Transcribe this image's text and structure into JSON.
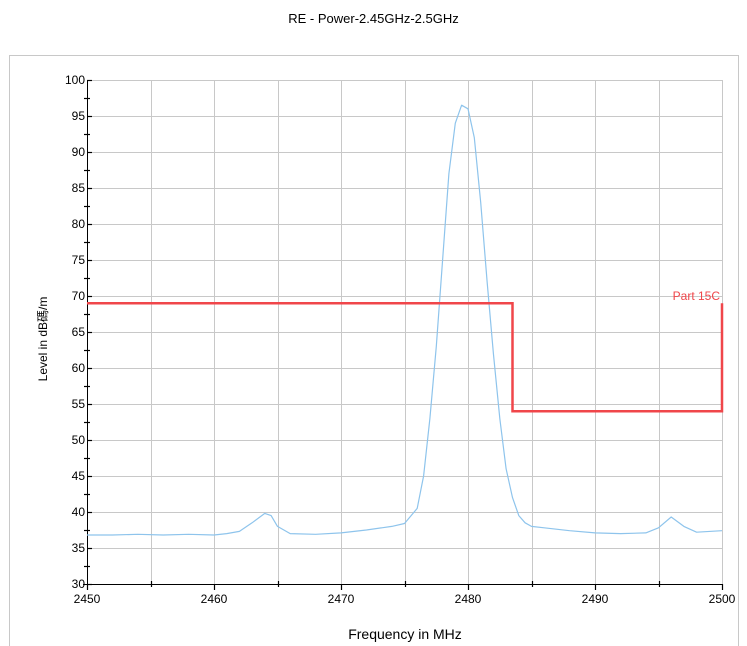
{
  "chart_data": {
    "type": "line",
    "title": "RE - Power-2.45GHz-2.5GHz",
    "xlabel": "Frequency in MHz",
    "ylabel": "Level in dB碼/m",
    "xlim": [
      2450,
      2500
    ],
    "ylim": [
      30,
      100
    ],
    "x_ticks": [
      2450,
      2460,
      2470,
      2480,
      2490,
      2500
    ],
    "y_ticks": [
      30,
      35,
      40,
      45,
      50,
      55,
      60,
      65,
      70,
      75,
      80,
      85,
      90,
      95,
      100
    ],
    "grid": true,
    "series": [
      {
        "name": "",
        "color": "#8ec4ec",
        "x": [
          2450,
          2452,
          2454,
          2456,
          2458,
          2460,
          2461,
          2462,
          2463,
          2464,
          2464.5,
          2465,
          2466,
          2468,
          2470,
          2472,
          2474,
          2475,
          2476,
          2476.5,
          2477,
          2477.5,
          2478,
          2478.5,
          2479,
          2479.5,
          2480,
          2480.5,
          2481,
          2481.5,
          2482,
          2482.5,
          2483,
          2483.5,
          2484,
          2484.5,
          2485,
          2486,
          2488,
          2490,
          2492,
          2494,
          2495,
          2496,
          2497,
          2498,
          2500
        ],
        "y": [
          36.8,
          36.8,
          36.9,
          36.8,
          36.9,
          36.8,
          37,
          37.3,
          38.5,
          39.8,
          39.5,
          38,
          37,
          36.9,
          37.1,
          37.5,
          38,
          38.4,
          40.5,
          45,
          53,
          63,
          75,
          87,
          94,
          96.5,
          96,
          92,
          83,
          72,
          62,
          53,
          46,
          42,
          39.5,
          38.5,
          38,
          37.8,
          37.4,
          37.1,
          37,
          37.1,
          37.8,
          39.3,
          38,
          37.2,
          37.4
        ]
      },
      {
        "name": "Part 15C",
        "color": "#f0464a",
        "x": [
          2450,
          2483.5,
          2483.5,
          2500,
          2500
        ],
        "y": [
          69,
          69,
          54,
          54,
          69
        ]
      }
    ]
  }
}
